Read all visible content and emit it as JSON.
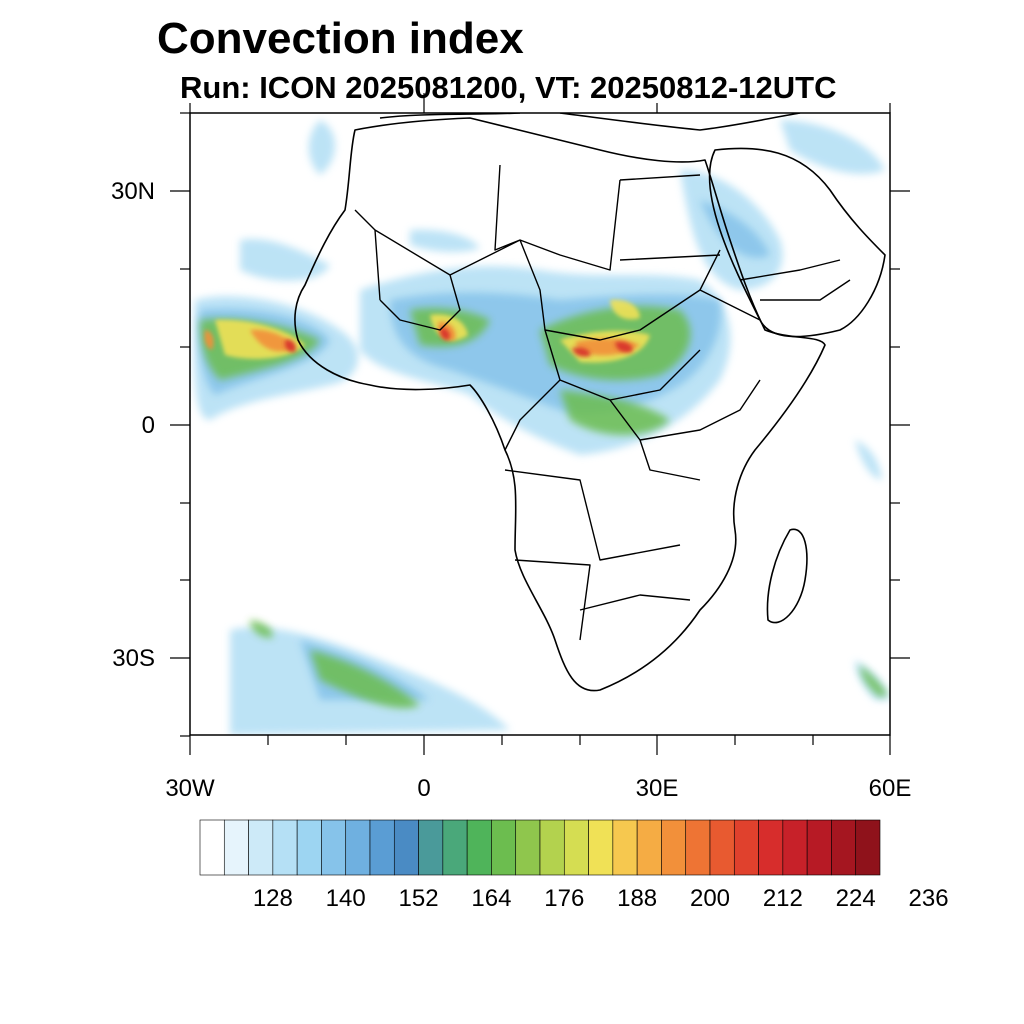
{
  "title": "Convection index",
  "subtitle": "Run: ICON 2025081200,  VT: 20250812-12UTC",
  "axes": {
    "lat_labels": [
      "30N",
      "0",
      "30S"
    ],
    "lon_labels": [
      "30W",
      "0",
      "30E",
      "60E"
    ]
  },
  "colorbar": {
    "labels": [
      "128",
      "140",
      "152",
      "164",
      "176",
      "188",
      "200",
      "212",
      "224",
      "236"
    ],
    "colors": [
      "#ffffff",
      "#e6f4fc",
      "#cdeaf8",
      "#b5e0f5",
      "#9dd5f2",
      "#86c3ea",
      "#6fb0e0",
      "#5a9dd4",
      "#4a8bc4",
      "#4a9a9a",
      "#4aa87a",
      "#4fb45a",
      "#6cbd4f",
      "#8fc64d",
      "#b3d24e",
      "#d5dd52",
      "#f0e156",
      "#f6c84f",
      "#f5ac44",
      "#f2903a",
      "#ee7434",
      "#e85a30",
      "#e0412d",
      "#d72d2c",
      "#c72129",
      "#b71a25",
      "#a51620",
      "#8f121b"
    ]
  },
  "legend_title": ""
}
